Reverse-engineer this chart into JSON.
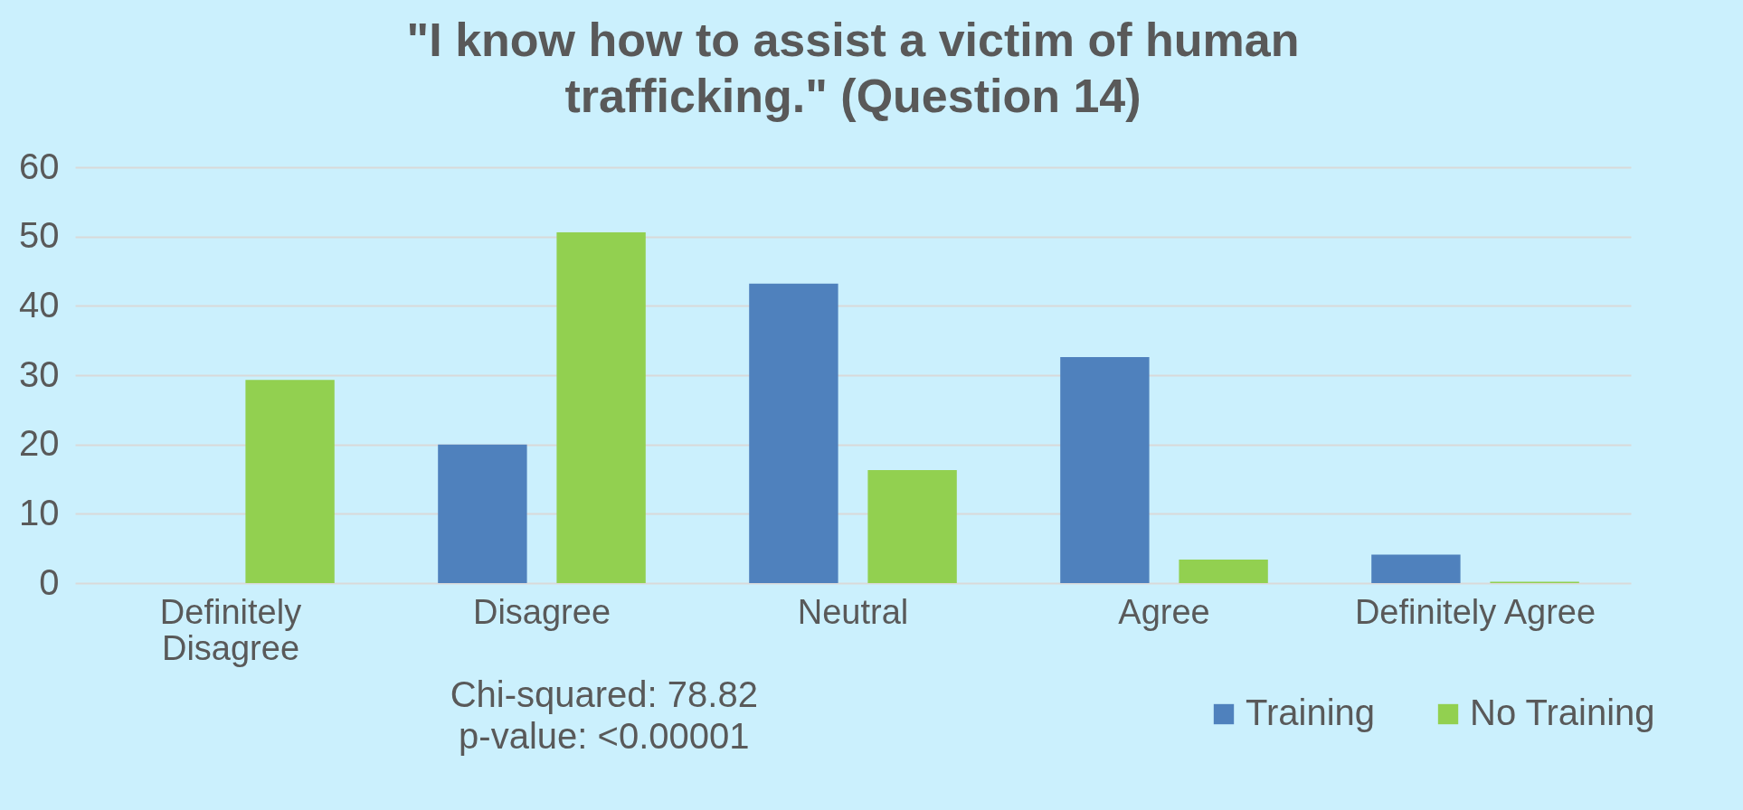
{
  "chart_data": {
    "type": "bar",
    "title": [
      "\"I know how to assist a victim of human",
      "trafficking.\" (Question 14)"
    ],
    "categories": [
      "Definitely Disagree",
      "Disagree",
      "Neutral",
      "Agree",
      "Definitely Agree"
    ],
    "series": [
      {
        "name": "Training",
        "color": "#4f81bd",
        "values": [
          0,
          20,
          43.2,
          32.6,
          4.1
        ]
      },
      {
        "name": "No Training",
        "color": "#92d050",
        "values": [
          29.3,
          50.6,
          16.3,
          3.4,
          0.2
        ]
      }
    ],
    "ylim": [
      0,
      60
    ],
    "yticks": [
      0,
      10,
      20,
      30,
      40,
      50,
      60
    ],
    "grid": "y",
    "legend": "bottom right",
    "annotations": [
      "Chi-squared: 78.82",
      "p-value: <0.00001"
    ]
  }
}
